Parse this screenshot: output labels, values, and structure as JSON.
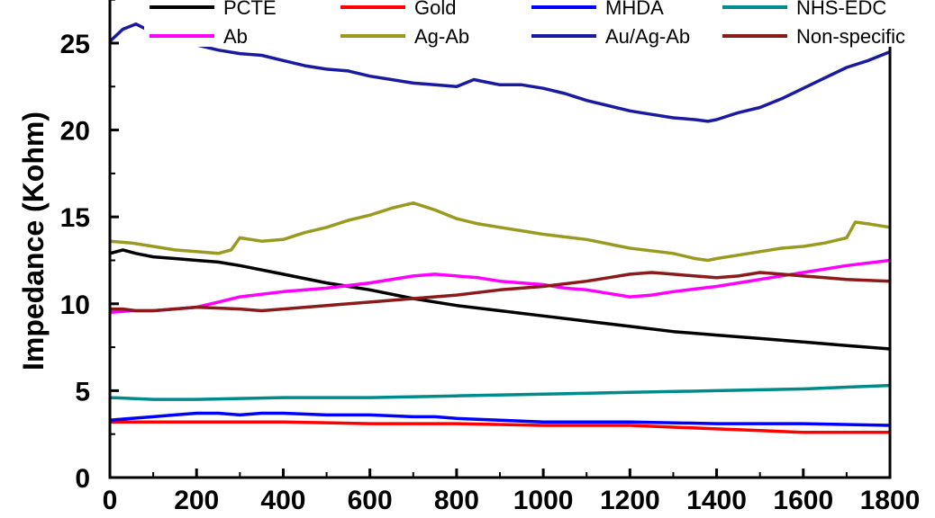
{
  "chart_data": {
    "type": "line",
    "ylabel": "Impedance (Kohm)",
    "xlabel": "",
    "xlim": [
      0,
      1800
    ],
    "ylim": [
      0,
      28
    ],
    "xticks": [
      0,
      200,
      400,
      600,
      800,
      1000,
      1200,
      1400,
      1600,
      1800
    ],
    "yticks": [
      0,
      5,
      10,
      15,
      20,
      25
    ],
    "legend_position": "top",
    "series": [
      {
        "name": "PCTE",
        "color": "#000000",
        "x": [
          0,
          30,
          60,
          100,
          150,
          200,
          250,
          300,
          400,
          500,
          600,
          700,
          800,
          900,
          1000,
          1100,
          1200,
          1300,
          1400,
          1500,
          1600,
          1700,
          1800
        ],
        "y": [
          12.9,
          13.1,
          12.9,
          12.7,
          12.6,
          12.5,
          12.4,
          12.2,
          11.7,
          11.2,
          10.8,
          10.3,
          9.9,
          9.6,
          9.3,
          9.0,
          8.7,
          8.4,
          8.2,
          8.0,
          7.8,
          7.6,
          7.4
        ]
      },
      {
        "name": "Gold",
        "color": "#ff0000",
        "x": [
          0,
          200,
          400,
          600,
          800,
          1000,
          1200,
          1400,
          1500,
          1600,
          1800
        ],
        "y": [
          3.2,
          3.2,
          3.2,
          3.1,
          3.1,
          3.0,
          3.0,
          2.8,
          2.7,
          2.6,
          2.6
        ]
      },
      {
        "name": "MHDA",
        "color": "#0000ff",
        "x": [
          0,
          50,
          100,
          150,
          200,
          250,
          300,
          350,
          400,
          500,
          600,
          700,
          750,
          800,
          900,
          1000,
          1200,
          1400,
          1600,
          1800
        ],
        "y": [
          3.3,
          3.4,
          3.5,
          3.6,
          3.7,
          3.7,
          3.6,
          3.7,
          3.7,
          3.6,
          3.6,
          3.5,
          3.5,
          3.4,
          3.3,
          3.2,
          3.2,
          3.1,
          3.1,
          3.0
        ]
      },
      {
        "name": "NHS-EDC",
        "color": "#008b8b",
        "x": [
          0,
          100,
          200,
          400,
          600,
          800,
          1000,
          1200,
          1400,
          1600,
          1700,
          1800
        ],
        "y": [
          4.6,
          4.5,
          4.5,
          4.6,
          4.6,
          4.7,
          4.8,
          4.9,
          5.0,
          5.1,
          5.2,
          5.3
        ]
      },
      {
        "name": "Ab",
        "color": "#ff00ff",
        "x": [
          0,
          50,
          100,
          150,
          200,
          250,
          300,
          400,
          500,
          600,
          700,
          750,
          800,
          850,
          900,
          1000,
          1050,
          1100,
          1150,
          1200,
          1250,
          1300,
          1400,
          1500,
          1600,
          1700,
          1800
        ],
        "y": [
          9.5,
          9.6,
          9.6,
          9.7,
          9.8,
          10.1,
          10.4,
          10.7,
          10.9,
          11.2,
          11.6,
          11.7,
          11.6,
          11.5,
          11.3,
          11.1,
          10.9,
          10.8,
          10.6,
          10.4,
          10.5,
          10.7,
          11.0,
          11.4,
          11.8,
          12.2,
          12.5
        ]
      },
      {
        "name": "Ag-Ab",
        "color": "#9a9a20",
        "x": [
          0,
          50,
          100,
          150,
          200,
          250,
          280,
          300,
          350,
          400,
          450,
          500,
          550,
          600,
          650,
          700,
          750,
          800,
          850,
          900,
          950,
          1000,
          1100,
          1200,
          1300,
          1350,
          1380,
          1400,
          1450,
          1500,
          1550,
          1600,
          1650,
          1700,
          1720,
          1750,
          1800
        ],
        "y": [
          13.6,
          13.5,
          13.3,
          13.1,
          13.0,
          12.9,
          13.1,
          13.8,
          13.6,
          13.7,
          14.1,
          14.4,
          14.8,
          15.1,
          15.5,
          15.8,
          15.4,
          14.9,
          14.6,
          14.4,
          14.2,
          14.0,
          13.7,
          13.2,
          12.9,
          12.6,
          12.5,
          12.6,
          12.8,
          13.0,
          13.2,
          13.3,
          13.5,
          13.8,
          14.7,
          14.6,
          14.4
        ]
      },
      {
        "name": "Au/Ag-Ab",
        "color": "#1a1aa0",
        "x": [
          0,
          30,
          60,
          100,
          150,
          200,
          250,
          300,
          350,
          400,
          450,
          500,
          550,
          600,
          650,
          700,
          750,
          800,
          840,
          860,
          900,
          950,
          1000,
          1050,
          1100,
          1150,
          1200,
          1250,
          1300,
          1350,
          1380,
          1400,
          1450,
          1500,
          1550,
          1600,
          1650,
          1700,
          1750,
          1800
        ],
        "y": [
          25.1,
          25.8,
          26.1,
          25.6,
          25.2,
          24.9,
          24.6,
          24.4,
          24.3,
          24.0,
          23.7,
          23.5,
          23.4,
          23.1,
          22.9,
          22.7,
          22.6,
          22.5,
          22.9,
          22.8,
          22.6,
          22.6,
          22.4,
          22.1,
          21.7,
          21.4,
          21.1,
          20.9,
          20.7,
          20.6,
          20.5,
          20.6,
          21.0,
          21.3,
          21.8,
          22.4,
          23.0,
          23.6,
          24.0,
          24.5
        ]
      },
      {
        "name": "Non-specific",
        "color": "#8b1a1a",
        "x": [
          0,
          30,
          60,
          100,
          200,
          300,
          350,
          400,
          500,
          600,
          700,
          800,
          900,
          1000,
          1100,
          1150,
          1200,
          1250,
          1300,
          1350,
          1400,
          1450,
          1500,
          1550,
          1600,
          1650,
          1700,
          1800
        ],
        "y": [
          9.7,
          9.7,
          9.6,
          9.6,
          9.8,
          9.7,
          9.6,
          9.7,
          9.9,
          10.1,
          10.3,
          10.5,
          10.8,
          11.0,
          11.3,
          11.5,
          11.7,
          11.8,
          11.7,
          11.6,
          11.5,
          11.6,
          11.8,
          11.7,
          11.6,
          11.5,
          11.4,
          11.3
        ]
      }
    ]
  }
}
